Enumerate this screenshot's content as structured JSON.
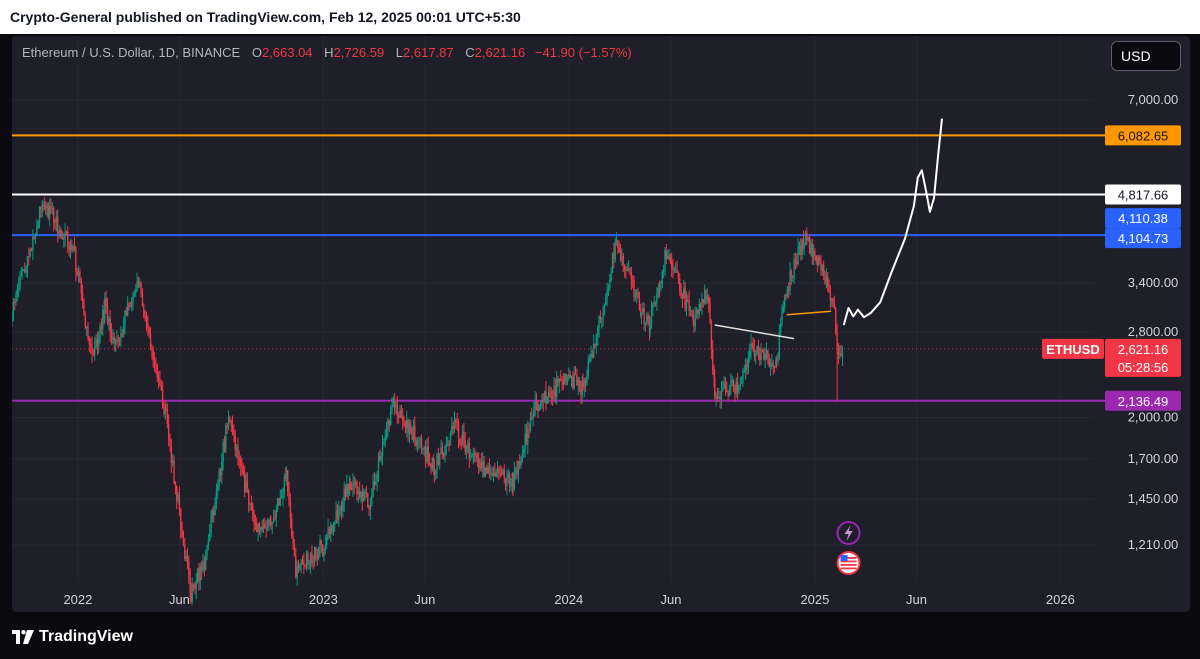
{
  "header": {
    "publisher_line": "Crypto-General published on TradingView.com, Feb 12, 2025 00:01 UTC+5:30"
  },
  "legend": {
    "symbol": "Ethereum / U.S. Dollar, 1D, BINANCE",
    "open_key": "O",
    "open": "2,663.04",
    "high_key": "H",
    "high": "2,726.59",
    "low_key": "L",
    "low": "2,617.87",
    "close_key": "C",
    "close": "2,621.16",
    "change": "−41.90 (−1.57%)"
  },
  "currency_button": "USD",
  "footer": {
    "brand": "TradingView"
  },
  "colors": {
    "background": "#1e1f28",
    "up": "#089981",
    "down": "#f23645",
    "orange_level": "#ff9800",
    "white_level": "#ffffff",
    "blue_level": "#2962ff",
    "purple_level": "#9c27b0"
  },
  "icons": [
    "lightning-icon",
    "us-flag-icon"
  ],
  "chart_data": {
    "type": "candlestick",
    "timeframe": "1D",
    "exchange": "BINANCE",
    "y_scale": "log",
    "ylim": [
      1050,
      9000
    ],
    "x_range": [
      "2021-09-25",
      "2026-02-20"
    ],
    "y_tick_labels": [
      {
        "value": 7000,
        "label": "7,000.00"
      },
      {
        "value": 3400,
        "label": "3,400.00"
      },
      {
        "value": 2800,
        "label": "2,800.00"
      },
      {
        "value": 2000,
        "label": "2,000.00"
      },
      {
        "value": 1700,
        "label": "1,700.00"
      },
      {
        "value": 1450,
        "label": "1,450.00"
      },
      {
        "value": 1210,
        "label": "1,210.00"
      }
    ],
    "x_tick_labels": [
      {
        "date": "2022-01-01",
        "label": "2022"
      },
      {
        "date": "2022-06-01",
        "label": "Jun"
      },
      {
        "date": "2023-01-01",
        "label": "2023"
      },
      {
        "date": "2023-06-01",
        "label": "Jun"
      },
      {
        "date": "2024-01-01",
        "label": "2024"
      },
      {
        "date": "2024-06-01",
        "label": "Jun"
      },
      {
        "date": "2025-01-01",
        "label": "2025"
      },
      {
        "date": "2025-06-01",
        "label": "Jun"
      },
      {
        "date": "2026-01-01",
        "label": "2026"
      }
    ],
    "horizontal_levels": [
      {
        "value": 6082.65,
        "label": "6,082.65",
        "color": "#ff9800",
        "label_bg": "#ff9800",
        "label_color": "#131722"
      },
      {
        "value": 4817.66,
        "label": "4,817.66",
        "color": "#ffffff",
        "label_bg": "#ffffff",
        "label_color": "#131722"
      },
      {
        "value": 4104.73,
        "label": "4,104.73",
        "color": "#2962ff",
        "label_bg": "#2962ff",
        "label_color": "#ffffff"
      },
      {
        "value": 2136.49,
        "label": "2,136.49",
        "color": "#9c27b0",
        "label_bg": "#9c27b0",
        "label_color": "#ffffff"
      }
    ],
    "extra_price_labels": [
      {
        "value": 4110.38,
        "label": "4,110.38",
        "bg": "#2962ff",
        "color": "#ffffff"
      }
    ],
    "last_price": {
      "value": 2621.16,
      "symbol": "ETHUSD",
      "label": "2,621.16",
      "countdown": "05:28:56",
      "color": "#f23645"
    },
    "price_path_anchors": [
      [
        "2021-09-25",
        3000
      ],
      [
        "2021-10-10",
        3500
      ],
      [
        "2021-11-10",
        4700
      ],
      [
        "2021-12-05",
        4200
      ],
      [
        "2021-12-25",
        3900
      ],
      [
        "2022-01-22",
        2500
      ],
      [
        "2022-02-10",
        3100
      ],
      [
        "2022-02-24",
        2600
      ],
      [
        "2022-03-30",
        3450
      ],
      [
        "2022-05-12",
        2000
      ],
      [
        "2022-06-18",
        1000
      ],
      [
        "2022-07-10",
        1150
      ],
      [
        "2022-08-13",
        2000
      ],
      [
        "2022-09-20",
        1320
      ],
      [
        "2022-10-15",
        1300
      ],
      [
        "2022-11-07",
        1600
      ],
      [
        "2022-11-21",
        1100
      ],
      [
        "2022-12-31",
        1200
      ],
      [
        "2023-02-10",
        1550
      ],
      [
        "2023-03-10",
        1420
      ],
      [
        "2023-04-15",
        2120
      ],
      [
        "2023-06-15",
        1650
      ],
      [
        "2023-07-15",
        1930
      ],
      [
        "2023-08-20",
        1650
      ],
      [
        "2023-10-10",
        1550
      ],
      [
        "2023-11-10",
        2050
      ],
      [
        "2023-12-28",
        2350
      ],
      [
        "2024-01-22",
        2250
      ],
      [
        "2024-02-25",
        3200
      ],
      [
        "2024-03-12",
        4050
      ],
      [
        "2024-04-18",
        3000
      ],
      [
        "2024-05-01",
        2900
      ],
      [
        "2024-05-25",
        3850
      ],
      [
        "2024-07-05",
        2900
      ],
      [
        "2024-07-25",
        3300
      ],
      [
        "2024-08-05",
        2200
      ],
      [
        "2024-09-06",
        2250
      ],
      [
        "2024-10-01",
        2650
      ],
      [
        "2024-11-05",
        2450
      ],
      [
        "2024-11-15",
        3200
      ],
      [
        "2024-12-16",
        4050
      ],
      [
        "2025-01-06",
        3700
      ],
      [
        "2025-01-28",
        3150
      ],
      [
        "2025-02-03",
        2650
      ],
      [
        "2025-02-11",
        2621.16
      ]
    ],
    "spike_low": {
      "date": "2025-02-03",
      "value": 2130
    },
    "annotations": {
      "projection_path": [
        [
          "2025-02-13",
          2880
        ],
        [
          "2025-02-20",
          3080
        ],
        [
          "2025-02-27",
          2980
        ],
        [
          "2025-03-06",
          3060
        ],
        [
          "2025-03-15",
          2970
        ],
        [
          "2025-03-25",
          3020
        ],
        [
          "2025-04-08",
          3150
        ],
        [
          "2025-04-25",
          3550
        ],
        [
          "2025-05-15",
          4050
        ],
        [
          "2025-05-28",
          4600
        ],
        [
          "2025-06-03",
          5150
        ],
        [
          "2025-06-09",
          5300
        ],
        [
          "2025-06-15",
          4900
        ],
        [
          "2025-06-21",
          4500
        ],
        [
          "2025-06-27",
          4750
        ],
        [
          "2025-07-03",
          5600
        ],
        [
          "2025-07-09",
          6500
        ]
      ],
      "neckline_white": [
        [
          "2024-08-05",
          2880
        ],
        [
          "2024-12-01",
          2730
        ]
      ],
      "neckline_orange": [
        [
          "2024-11-20",
          3000
        ],
        [
          "2025-01-25",
          3040
        ]
      ]
    }
  }
}
